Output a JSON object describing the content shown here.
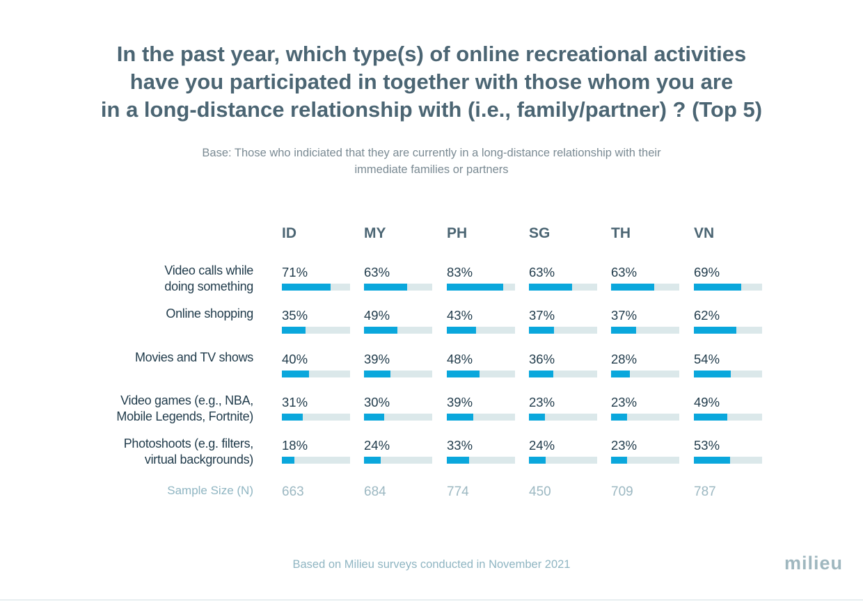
{
  "title_lines": [
    "In the past year, which type(s) of online recreational activities",
    "have you participated in together with those whom you are",
    "in a long-distance relationship with (i.e., family/partner) ? (Top 5)"
  ],
  "subtitle_lines": [
    "Base: Those who indiciated that they are currently in a long-distance relationship with their",
    "immediate families or partners"
  ],
  "footer": "Based on Milieu surveys conducted in November 2021",
  "logo": "milieu",
  "colors": {
    "bar": "#0aa7dc",
    "track": "#dbe8ea",
    "title": "#4b6573"
  },
  "chart_data": {
    "type": "bar",
    "title": "In the past year, which type(s) of online recreational activities have you participated in together with those whom you are in a long-distance relationship with (i.e., family/partner) ? (Top 5)",
    "columns": [
      "ID",
      "MY",
      "PH",
      "SG",
      "TH",
      "VN"
    ],
    "rows": [
      {
        "label": [
          "Video calls while",
          "doing something"
        ],
        "values": [
          71,
          63,
          83,
          63,
          63,
          69
        ]
      },
      {
        "label": [
          "Online shopping"
        ],
        "values": [
          35,
          49,
          43,
          37,
          37,
          62
        ]
      },
      {
        "label": [
          "Movies and TV shows"
        ],
        "values": [
          40,
          39,
          48,
          36,
          28,
          54
        ]
      },
      {
        "label": [
          "Video games (e.g., NBA,",
          "Mobile Legends, Fortnite)"
        ],
        "values": [
          31,
          30,
          39,
          23,
          23,
          49
        ]
      },
      {
        "label": [
          "Photoshoots (e.g. filters,",
          "virtual backgrounds)"
        ],
        "values": [
          18,
          24,
          33,
          24,
          23,
          53
        ]
      }
    ],
    "value_suffix": "%",
    "sample_label": "Sample Size (N)",
    "sample_sizes": [
      663,
      684,
      774,
      450,
      709,
      787
    ],
    "ylim": [
      0,
      100
    ]
  }
}
